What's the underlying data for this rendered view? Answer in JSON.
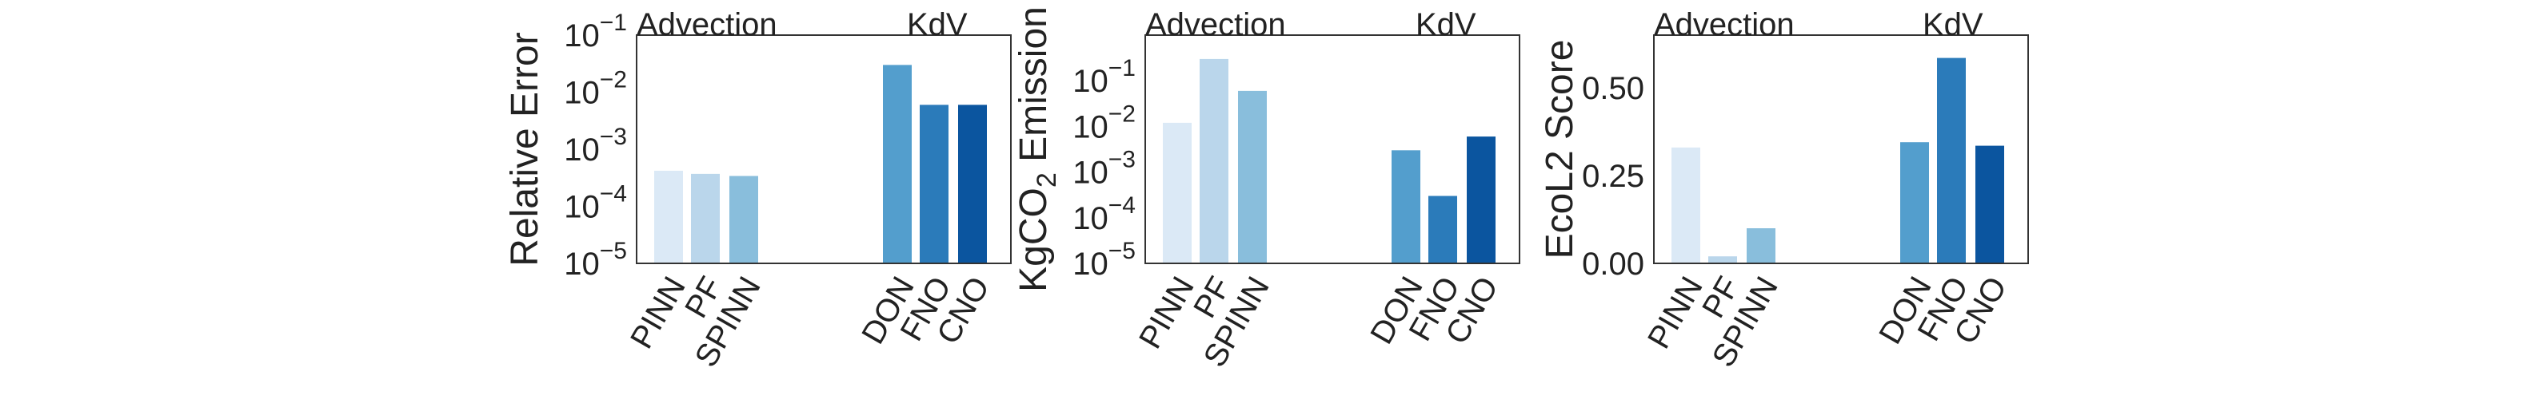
{
  "chart_data": [
    {
      "type": "bar",
      "ylabel": "Relative Error",
      "yscale": "log",
      "ylim": [
        1e-05,
        0.1
      ],
      "yticks": [
        {
          "base": "10",
          "exp": "−5"
        },
        {
          "base": "10",
          "exp": "−4"
        },
        {
          "base": "10",
          "exp": "−3"
        },
        {
          "base": "10",
          "exp": "−2"
        },
        {
          "base": "10",
          "exp": "−1"
        }
      ],
      "groups": [
        "Advection",
        "KdV"
      ],
      "categories": [
        "PINN",
        "PF",
        "SPINN",
        "DON",
        "FNO",
        "CNO"
      ],
      "values": [
        0.00042,
        0.00037,
        0.00034,
        0.03,
        0.006,
        0.006
      ]
    },
    {
      "type": "bar",
      "ylabel_parts": {
        "pre": "KgCO",
        "sub": "2",
        "post": " Emission"
      },
      "yscale": "log",
      "ylim": [
        1e-05,
        1.0
      ],
      "yticks": [
        {
          "base": "10",
          "exp": "−5"
        },
        {
          "base": "10",
          "exp": "−4"
        },
        {
          "base": "10",
          "exp": "−3"
        },
        {
          "base": "10",
          "exp": "−2"
        },
        {
          "base": "10",
          "exp": "−1"
        }
      ],
      "groups": [
        "Advection",
        "KdV"
      ],
      "categories": [
        "PINN",
        "PF",
        "SPINN",
        "DON",
        "FNO",
        "CNO"
      ],
      "values": [
        0.012,
        0.3,
        0.06,
        0.003,
        0.0003,
        0.006
      ]
    },
    {
      "type": "bar",
      "ylabel": "EcoL2 Score",
      "yscale": "linear",
      "ylim": [
        0,
        0.65
      ],
      "yticks": [
        "0.00",
        "0.25",
        "0.50"
      ],
      "ytick_values": [
        0,
        0.25,
        0.5
      ],
      "groups": [
        "Advection",
        "KdV"
      ],
      "categories": [
        "PINN",
        "PF",
        "SPINN",
        "DON",
        "FNO",
        "CNO"
      ],
      "values": [
        0.33,
        0.02,
        0.1,
        0.345,
        0.585,
        0.335
      ]
    }
  ],
  "colors": [
    "#dbe9f6",
    "#bad6eb",
    "#89bedc",
    "#539ecd",
    "#2b7bba",
    "#0b559f"
  ]
}
